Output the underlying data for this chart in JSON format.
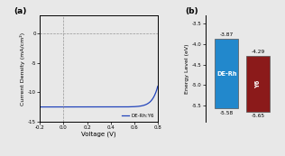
{
  "panel_a_label": "(a)",
  "panel_b_label": "(b)",
  "jv_xlabel": "Voltage (V)",
  "jv_ylabel": "Current Density (mA/cm²)",
  "jv_xlim": [
    -0.2,
    0.8
  ],
  "jv_ylim": [
    -15,
    3
  ],
  "jv_xticks": [
    -0.2,
    0.0,
    0.2,
    0.4,
    0.6,
    0.8
  ],
  "jv_xtick_labels": [
    "-0.2",
    "0.0",
    "0.2",
    "0.4",
    "0.6",
    "0.8"
  ],
  "jv_yticks": [
    0,
    -5,
    -10,
    -15
  ],
  "jv_curve_color": "#2244bb",
  "jv_legend": "DE-Rh:Y6",
  "energy_ylabel": "Energy Level (eV)",
  "energy_ylim": [
    -5.9,
    -3.3
  ],
  "energy_yticks": [
    -3.5,
    -4.0,
    -4.5,
    -5.0,
    -5.5
  ],
  "bars": [
    {
      "label": "DE-Rh",
      "homo": -5.58,
      "lumo": -3.87,
      "color": "#2288cc"
    },
    {
      "label": "Y6",
      "homo": -5.65,
      "lumo": -4.29,
      "color": "#8b1a1a"
    }
  ],
  "bar_width": 0.45,
  "bg_color": "#e8e8e8"
}
